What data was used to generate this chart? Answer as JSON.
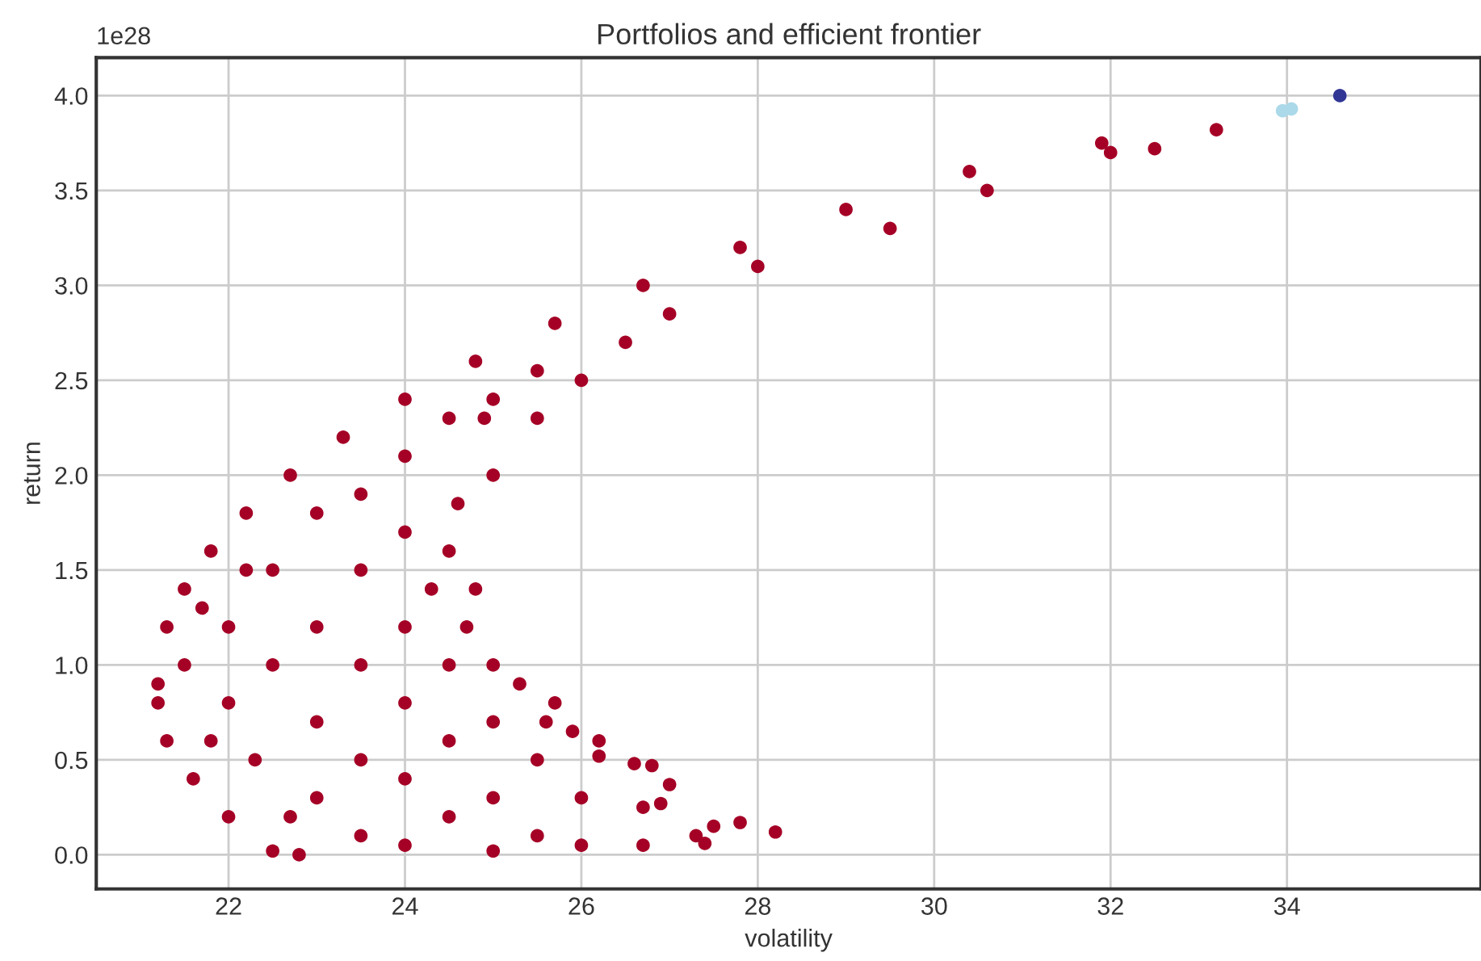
{
  "chart_data": {
    "type": "scatter",
    "title": "Portfolios and efficient frontier",
    "xlabel": "volatility",
    "ylabel": "return",
    "annotations": [
      "1e28"
    ],
    "xlim": [
      20.5,
      36.2
    ],
    "xticks": [
      22,
      24,
      26,
      28,
      30,
      32,
      34
    ],
    "ylim": [
      -0.18,
      4.2
    ],
    "yticks": [
      {
        "value": 0,
        "label": "0.0"
      },
      {
        "value": 0.5,
        "label": "0.5"
      },
      {
        "value": 1,
        "label": "1.0"
      },
      {
        "value": 1.5,
        "label": "1.5"
      },
      {
        "value": 2,
        "label": "2.0"
      },
      {
        "value": 2.5,
        "label": "2.5"
      },
      {
        "value": 3,
        "label": "3.0"
      },
      {
        "value": 3.5,
        "label": "3.5"
      },
      {
        "value": 4,
        "label": "4.0"
      }
    ],
    "grid": true,
    "marker": "circle",
    "series": [
      {
        "color": "#a50026",
        "x": [
          21.2,
          21.3,
          21.5,
          21.8,
          22.2,
          22.7,
          23.3,
          24.0,
          24.8,
          25.7,
          26.7,
          27.8,
          29.0,
          30.4,
          31.9,
          33.2,
          21.2,
          21.3,
          21.6,
          22.0,
          22.5,
          22.8,
          28.2,
          27.8,
          27.5,
          27.3,
          27.4,
          26.7,
          26.7,
          26.9,
          27.0,
          26.8,
          26.6,
          26.2,
          26.2,
          25.9,
          25.7,
          25.6,
          25.3,
          25.0,
          24.8,
          24.7,
          24.3,
          24.5,
          24.6,
          25.0,
          25.5,
          24.9,
          26.0,
          26.5,
          27.0,
          28.0,
          29.5,
          30.6,
          32.0,
          32.5,
          21.5,
          22.0,
          22.0,
          22.5,
          22.5,
          23.0,
          23.0,
          23.0,
          23.0,
          23.5,
          23.5,
          23.5,
          23.5,
          23.5,
          24.0,
          24.0,
          24.0,
          24.0,
          24.0,
          24.0,
          24.5,
          24.5,
          24.5,
          24.5,
          25.0,
          25.0,
          25.0,
          25.0,
          25.5,
          25.5,
          25.5,
          26.0,
          26.0,
          22.2,
          22.7,
          22.3,
          21.7,
          21.8
        ],
        "values": [
          0.9,
          1.2,
          1.4,
          1.6,
          1.8,
          2.0,
          2.2,
          2.4,
          2.6,
          2.8,
          3.0,
          3.2,
          3.4,
          3.6,
          3.75,
          3.82,
          0.8,
          0.6,
          0.4,
          0.2,
          0.02,
          0.0,
          0.12,
          0.17,
          0.15,
          0.1,
          0.06,
          0.05,
          0.25,
          0.27,
          0.37,
          0.47,
          0.48,
          0.6,
          0.52,
          0.65,
          0.8,
          0.7,
          0.9,
          1.0,
          1.4,
          1.2,
          1.4,
          1.6,
          1.85,
          2.0,
          2.3,
          2.3,
          2.5,
          2.7,
          2.85,
          3.1,
          3.3,
          3.5,
          3.7,
          3.72,
          1.0,
          1.2,
          0.8,
          1.0,
          1.5,
          1.8,
          1.2,
          0.7,
          0.3,
          1.9,
          1.5,
          1.0,
          0.5,
          0.1,
          2.1,
          1.7,
          1.2,
          0.8,
          0.4,
          0.05,
          2.3,
          1.0,
          0.6,
          0.2,
          2.4,
          0.7,
          0.3,
          0.02,
          2.55,
          0.5,
          0.1,
          0.3,
          0.05,
          1.5,
          0.2,
          0.5,
          1.3,
          0.6
        ]
      },
      {
        "color": "#abd9e9",
        "x": [
          33.95,
          34.05
        ],
        "values": [
          3.92,
          3.93
        ]
      },
      {
        "color": "#313695",
        "x": [
          34.6
        ],
        "values": [
          4.0
        ]
      }
    ]
  }
}
